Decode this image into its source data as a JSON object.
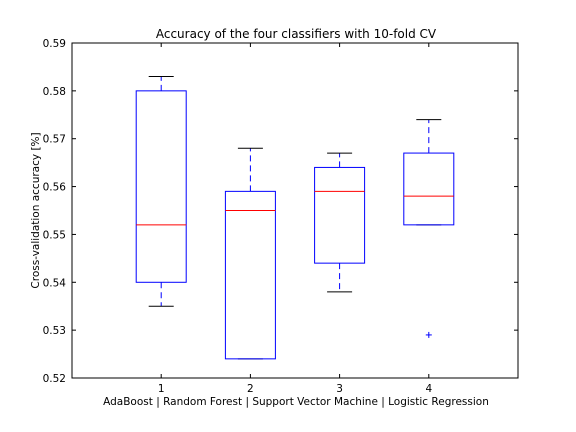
{
  "chart_data": {
    "type": "box",
    "title": "Accuracy of the four classifiers with 10-fold CV",
    "xlabel": "AdaBoost | Random Forest | Support Vector Machine | Logistic Regression",
    "ylabel": "Cross-validation accuracy [%]",
    "categories": [
      "1",
      "2",
      "3",
      "4"
    ],
    "ylim": [
      0.52,
      0.59
    ],
    "yticks": [
      "0.52",
      "0.53",
      "0.54",
      "0.55",
      "0.56",
      "0.57",
      "0.58",
      "0.59"
    ],
    "boxes": [
      {
        "whisker_low": 0.535,
        "q1": 0.54,
        "median": 0.552,
        "q3": 0.58,
        "whisker_high": 0.583,
        "outliers": []
      },
      {
        "whisker_low": 0.524,
        "q1": 0.524,
        "median": 0.555,
        "q3": 0.559,
        "whisker_high": 0.568,
        "outliers": []
      },
      {
        "whisker_low": 0.538,
        "q1": 0.544,
        "median": 0.559,
        "q3": 0.564,
        "whisker_high": 0.567,
        "outliers": []
      },
      {
        "whisker_low": 0.552,
        "q1": 0.552,
        "median": 0.558,
        "q3": 0.567,
        "whisker_high": 0.574,
        "outliers": [
          0.529
        ]
      }
    ],
    "colors": {
      "box": "#0000ff",
      "median": "#ff0000",
      "whisker": "#0000ff",
      "cap": "#000000",
      "outlier": "#0000ff"
    }
  }
}
